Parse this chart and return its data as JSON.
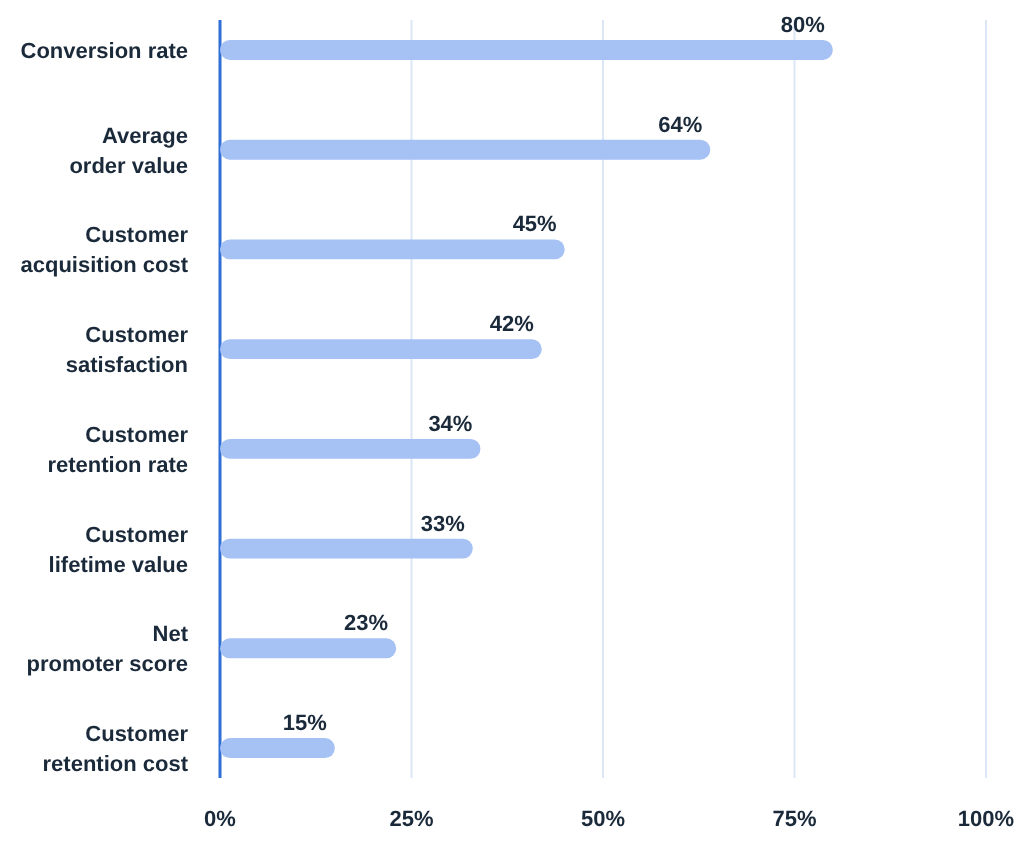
{
  "chart_data": {
    "type": "bar",
    "orientation": "horizontal",
    "categories": [
      "Conversion rate",
      "Average order value",
      "Customer acquisition cost",
      "Customer satisfaction",
      "Customer retention rate",
      "Customer lifetime value",
      "Net promoter score",
      "Customer retention cost"
    ],
    "values": [
      80,
      64,
      45,
      42,
      34,
      33,
      23,
      15
    ],
    "color": "#a6c2f4",
    "value_labels": [
      "80%",
      "64%",
      "45%",
      "42%",
      "34%",
      "33%",
      "23%",
      "15%"
    ],
    "xlim": [
      0,
      100
    ],
    "xticks": [
      {
        "value": 0,
        "label": "0%"
      },
      {
        "value": 25,
        "label": "25%"
      },
      {
        "value": 50,
        "label": "50%"
      },
      {
        "value": 75,
        "label": "75%"
      },
      {
        "value": 100,
        "label": "100%"
      }
    ],
    "grid": "x"
  }
}
